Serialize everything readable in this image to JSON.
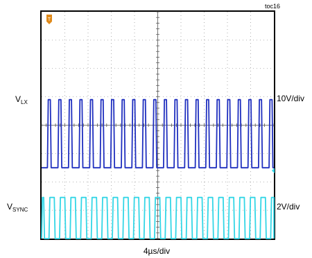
{
  "chart_data": {
    "type": "line",
    "figure_id": "toc16",
    "x_scale_label": "4µs/div",
    "grid": {
      "divisions_x": 10,
      "divisions_y": 8,
      "style": "dotted"
    },
    "series": [
      {
        "name": "VLX",
        "label_main": "V",
        "label_sub": "LX",
        "scale_label": "10V/div",
        "color": "#1f2fbf",
        "pulses_per_screen": 22,
        "duty_fraction": 0.28,
        "low_level_div": 2.5,
        "high_level_div": 4.9
      },
      {
        "name": "VSYNC",
        "label_main": "V",
        "label_sub": "SYNC",
        "scale_label": "2V/div",
        "color": "#33d6e6",
        "pulses_per_screen": 22,
        "duty_fraction": 0.5,
        "low_level_div": 0.0,
        "high_level_div": 1.45
      }
    ],
    "markers": {
      "trigger_color": "#e08a1a",
      "ch2_marker_color": "#33d6e6"
    }
  }
}
